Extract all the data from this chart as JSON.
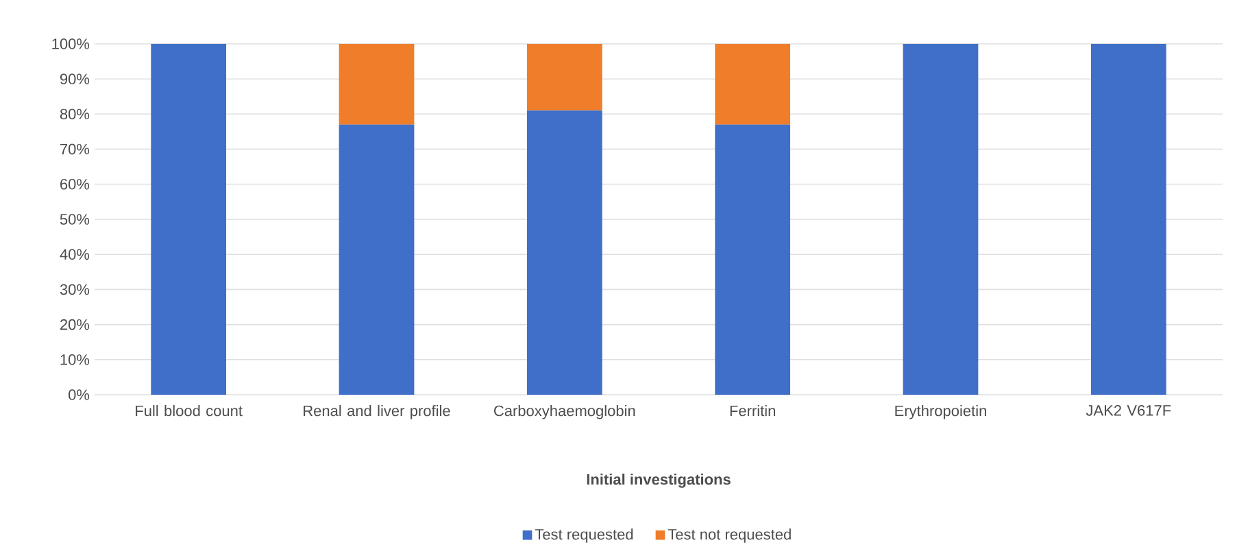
{
  "chart_data": {
    "type": "bar",
    "stacked": true,
    "xlabel": "Initial investigations",
    "categories": [
      "Full blood count",
      "Renal and liver profile",
      "Carboxyhaemoglobin",
      "Ferritin",
      "Erythropoietin",
      "JAK2 V617F"
    ],
    "series": [
      {
        "name": "Test requested",
        "color": "#3f6fc8",
        "values": [
          100,
          77,
          81,
          77,
          100,
          100
        ]
      },
      {
        "name": "Test not requested",
        "color": "#ef7d2a",
        "values": [
          0,
          23,
          19,
          23,
          0,
          0
        ]
      }
    ],
    "ylim": [
      0,
      100
    ],
    "yticks": [
      {
        "value": 0,
        "label": "0%"
      },
      {
        "value": 10,
        "label": "10%"
      },
      {
        "value": 20,
        "label": "20%"
      },
      {
        "value": 30,
        "label": "30%"
      },
      {
        "value": 40,
        "label": "40%"
      },
      {
        "value": 50,
        "label": "50%"
      },
      {
        "value": 60,
        "label": "60%"
      },
      {
        "value": 70,
        "label": "70%"
      },
      {
        "value": 80,
        "label": "80%"
      },
      {
        "value": 90,
        "label": "90%"
      },
      {
        "value": 100,
        "label": "100%"
      }
    ],
    "grid": "y",
    "legend": "bottom"
  }
}
